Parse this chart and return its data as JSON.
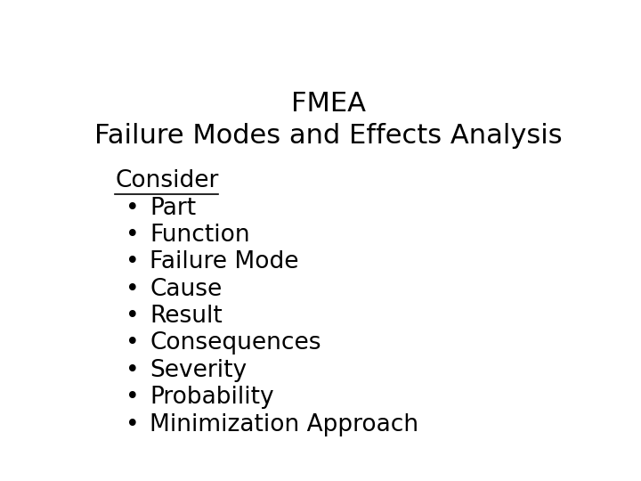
{
  "title_line1": "FMEA",
  "title_line2": "Failure Modes and Effects Analysis",
  "consider_label": "Consider",
  "bullet_items": [
    "Part",
    "Function",
    "Failure Mode",
    "Cause",
    "Result",
    "Consequences",
    "Severity",
    "Probability",
    "Minimization Approach"
  ],
  "background_color": "#ffffff",
  "text_color": "#000000",
  "title_fontsize": 22,
  "consider_fontsize": 19,
  "bullet_fontsize": 19,
  "font_family": "DejaVu Sans"
}
